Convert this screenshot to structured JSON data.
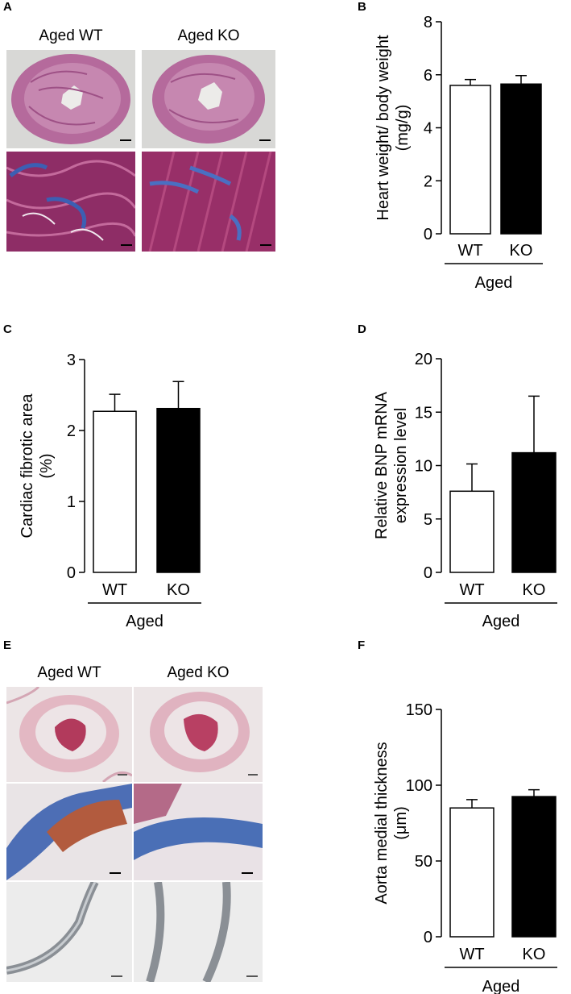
{
  "panels": {
    "a": {
      "letter": "A",
      "col1": "Aged WT",
      "col2": "Aged KO"
    },
    "b": {
      "letter": "B"
    },
    "c": {
      "letter": "C"
    },
    "d": {
      "letter": "D"
    },
    "e": {
      "letter": "E",
      "col1": "Aged WT",
      "col2": "Aged KO"
    },
    "f": {
      "letter": "F"
    }
  },
  "colors": {
    "wt_fill": "#ffffff",
    "ko_fill": "#000000",
    "stroke": "#000000"
  },
  "chart_data": [
    {
      "id": "B",
      "type": "bar",
      "categories": [
        "WT",
        "KO"
      ],
      "values": [
        5.6,
        5.65
      ],
      "errors": [
        0.22,
        0.32
      ],
      "ylabel_lines": [
        "Heart weight/ body weight",
        "(mg/g)"
      ],
      "ylim": [
        0,
        8
      ],
      "yticks": [
        0,
        2,
        4,
        6,
        8
      ],
      "group_label": "Aged"
    },
    {
      "id": "C",
      "type": "bar",
      "categories": [
        "WT",
        "KO"
      ],
      "values": [
        2.27,
        2.31
      ],
      "errors": [
        0.24,
        0.38
      ],
      "ylabel_lines": [
        "Cardiac fibrotic area",
        "(%)"
      ],
      "ylim": [
        0,
        3
      ],
      "yticks": [
        0,
        1,
        2,
        3
      ],
      "group_label": "Aged"
    },
    {
      "id": "D",
      "type": "bar",
      "categories": [
        "WT",
        "KO"
      ],
      "values": [
        7.6,
        11.2
      ],
      "errors": [
        2.55,
        5.3
      ],
      "ylabel_lines": [
        "Relative BNP mRNA",
        "expression level"
      ],
      "ylim": [
        0,
        20
      ],
      "yticks": [
        0,
        5,
        10,
        15,
        20
      ],
      "group_label": "Aged"
    },
    {
      "id": "F",
      "type": "bar",
      "categories": [
        "WT",
        "KO"
      ],
      "values": [
        85,
        92.5
      ],
      "errors": [
        5.5,
        4.5
      ],
      "ylabel_lines": [
        "Aorta medial thickness",
        "(μm)"
      ],
      "ylim": [
        0,
        150
      ],
      "yticks": [
        0,
        50,
        100,
        150
      ],
      "group_label": "Aged"
    }
  ]
}
